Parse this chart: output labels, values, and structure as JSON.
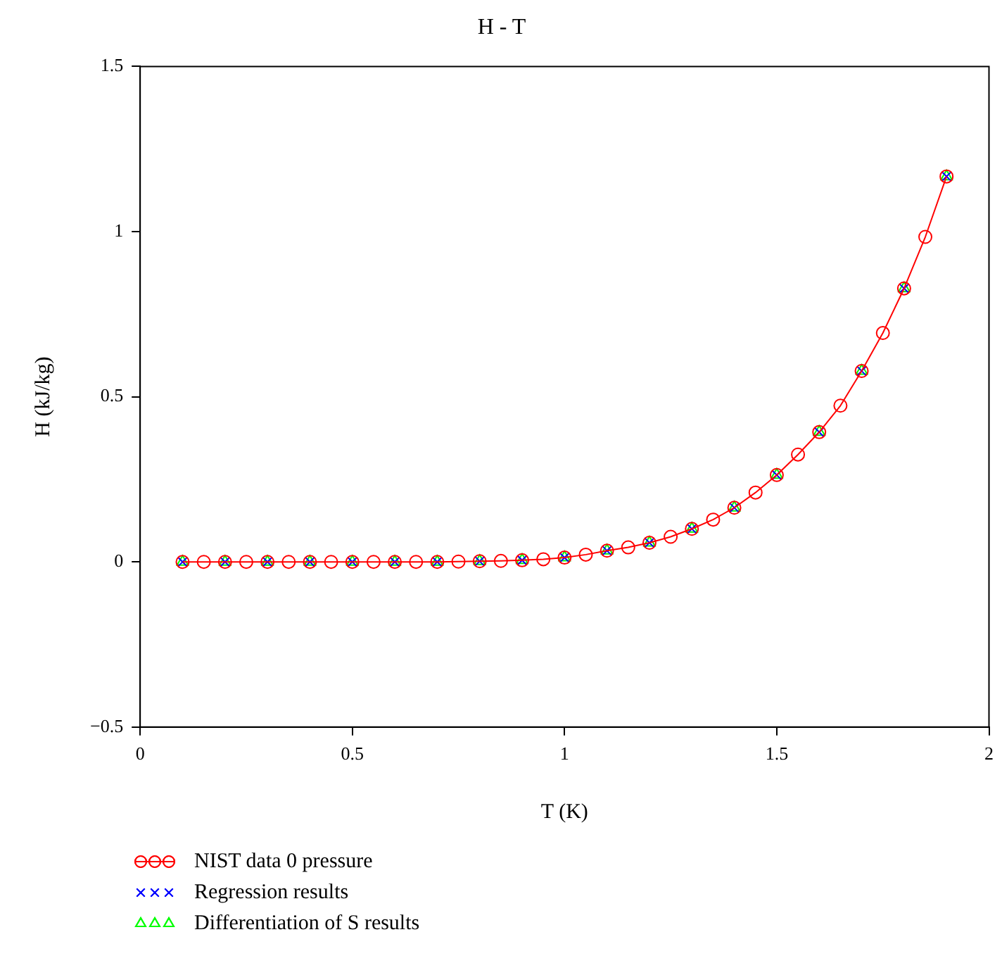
{
  "chart_data": {
    "type": "line",
    "title": "H - T",
    "xlabel": "T (K)",
    "ylabel": "H (kJ/kg)",
    "xlim": [
      0,
      2
    ],
    "xticks": [
      0,
      0.5,
      1,
      1.5,
      2
    ],
    "ylim": [
      -0.5,
      1.5
    ],
    "yticks": [
      {
        "value": -0.5,
        "label": "−0.5"
      },
      0,
      0.5,
      1,
      1.5
    ],
    "grid": false,
    "legend": "bottom left",
    "series": [
      {
        "name": "NIST data 0 pressure",
        "type": "line",
        "marker": "circle",
        "color": "#ff0000",
        "x": [
          0.1,
          0.15,
          0.2,
          0.25,
          0.3,
          0.35,
          0.4,
          0.45,
          0.5,
          0.55,
          0.6,
          0.65,
          0.7,
          0.75,
          0.8,
          0.85,
          0.9,
          0.95,
          1.0,
          1.05,
          1.1,
          1.15,
          1.2,
          1.25,
          1.3,
          1.35,
          1.4,
          1.45,
          1.5,
          1.55,
          1.6,
          1.65,
          1.7,
          1.75,
          1.8,
          1.85,
          1.9
        ],
        "values": [
          0,
          0,
          0,
          0,
          0,
          0,
          0,
          0,
          0,
          0,
          0,
          0,
          0,
          0.001,
          0.002,
          0.003,
          0.005,
          0.008,
          0.013,
          0.022,
          0.034,
          0.044,
          0.058,
          0.076,
          0.1,
          0.128,
          0.164,
          0.21,
          0.263,
          0.325,
          0.393,
          0.473,
          0.578,
          0.693,
          0.828,
          0.984,
          1.167
        ]
      },
      {
        "name": "Regression results",
        "type": "scatter",
        "marker": "cross",
        "color": "#0000ff",
        "x": [
          0.1,
          0.2,
          0.3,
          0.4,
          0.5,
          0.6,
          0.7,
          0.8,
          0.9,
          1.0,
          1.1,
          1.2,
          1.3,
          1.4,
          1.5,
          1.6,
          1.7,
          1.8,
          1.9
        ],
        "values": [
          0,
          0,
          0,
          0,
          0,
          0,
          0,
          0.002,
          0.005,
          0.013,
          0.034,
          0.058,
          0.1,
          0.164,
          0.263,
          0.393,
          0.578,
          0.828,
          1.167
        ]
      },
      {
        "name": "Differentiation of S results",
        "type": "scatter",
        "marker": "triangle",
        "color": "#00ff00",
        "x": [
          0.1,
          0.2,
          0.3,
          0.4,
          0.5,
          0.6,
          0.7,
          0.8,
          0.9,
          1.0,
          1.1,
          1.2,
          1.3,
          1.4,
          1.5,
          1.6,
          1.7,
          1.8,
          1.9
        ],
        "values": [
          0,
          0,
          0,
          0,
          0,
          0,
          0,
          0.002,
          0.005,
          0.013,
          0.034,
          0.058,
          0.1,
          0.164,
          0.263,
          0.393,
          0.578,
          0.828,
          1.167
        ]
      }
    ]
  }
}
